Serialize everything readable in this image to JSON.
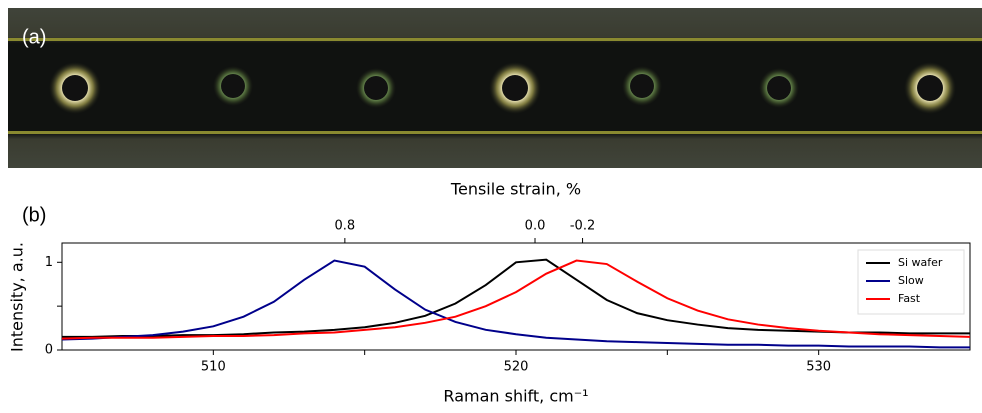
{
  "image_panel": {
    "label": "(a)"
  },
  "chart_data": {
    "type": "line",
    "panel_label": "(b)",
    "xlabel": "Raman shift, cm⁻¹",
    "ylabel": "Intensity, a.u.",
    "x2label": "Tensile strain, %",
    "x": [
      505,
      506,
      507,
      508,
      509,
      510,
      511,
      512,
      513,
      514,
      515,
      516,
      517,
      518,
      519,
      520,
      521,
      522,
      523,
      524,
      525,
      526,
      527,
      528,
      529,
      530,
      531,
      532,
      533,
      534,
      535
    ],
    "series": [
      {
        "name": "Si wafer",
        "color": "#000000",
        "values": [
          0.15,
          0.15,
          0.16,
          0.16,
          0.17,
          0.17,
          0.18,
          0.2,
          0.21,
          0.23,
          0.26,
          0.31,
          0.39,
          0.53,
          0.74,
          1.0,
          1.03,
          0.8,
          0.57,
          0.42,
          0.34,
          0.29,
          0.25,
          0.23,
          0.22,
          0.21,
          0.2,
          0.2,
          0.19,
          0.19,
          0.19
        ]
      },
      {
        "name": "Slow",
        "color": "#00008b",
        "values": [
          0.12,
          0.13,
          0.15,
          0.17,
          0.21,
          0.27,
          0.38,
          0.55,
          0.8,
          1.02,
          0.95,
          0.69,
          0.46,
          0.32,
          0.23,
          0.18,
          0.14,
          0.12,
          0.1,
          0.09,
          0.08,
          0.07,
          0.06,
          0.06,
          0.05,
          0.05,
          0.04,
          0.04,
          0.04,
          0.03,
          0.03
        ]
      },
      {
        "name": "Fast",
        "color": "#ff0000",
        "values": [
          0.13,
          0.14,
          0.14,
          0.14,
          0.15,
          0.16,
          0.16,
          0.17,
          0.19,
          0.2,
          0.23,
          0.26,
          0.31,
          0.38,
          0.5,
          0.66,
          0.87,
          1.02,
          0.98,
          0.78,
          0.59,
          0.45,
          0.35,
          0.29,
          0.25,
          0.22,
          0.2,
          0.18,
          0.17,
          0.16,
          0.15
        ]
      }
    ],
    "xlim": [
      505,
      535
    ],
    "xticks": [
      510,
      520,
      530
    ],
    "xminorticks": [
      515,
      525
    ],
    "ylim": [
      0,
      1.22
    ],
    "yticks": [
      0,
      1
    ],
    "yminorticks": [
      0.5
    ],
    "x2lim": [
      1.99,
      -1.83
    ],
    "x2ticks": [
      0.8,
      {
        "value": 0,
        "label": "0.0"
      },
      -0.2
    ],
    "legend": "upper right",
    "grid": false
  }
}
